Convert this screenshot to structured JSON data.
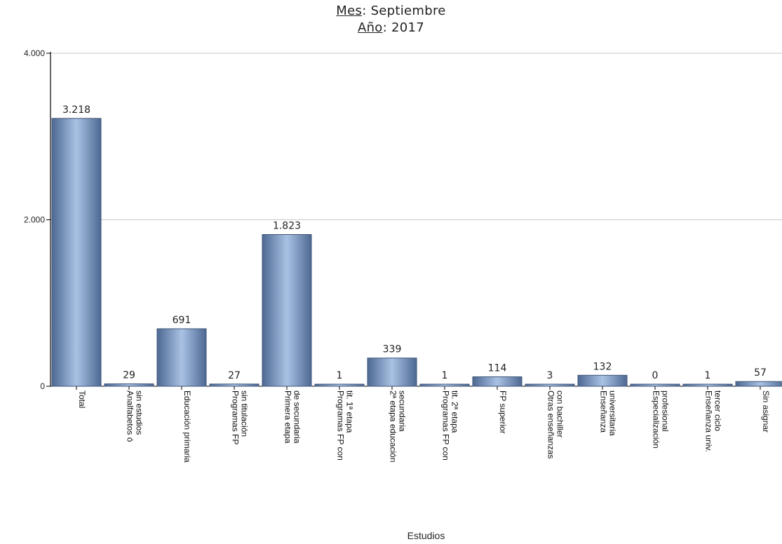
{
  "title": {
    "month_key": "Mes",
    "month_value": "Septiembre",
    "year_key": "Año",
    "year_value": "2017"
  },
  "chart_data": {
    "type": "bar",
    "xlabel": "Estudios",
    "ylabel": "",
    "ylim": [
      0,
      4000
    ],
    "yticks": [
      "0",
      "2.000",
      "4.000"
    ],
    "ytick_values": [
      0,
      2000,
      4000
    ],
    "grid": true,
    "bar_color": "#7f9bc2",
    "categories": [
      [
        "Total"
      ],
      [
        "Analfabetos ó",
        "sin estudios"
      ],
      [
        "Educación primaria"
      ],
      [
        "Programas FP",
        "sin titulación"
      ],
      [
        "Primera etapa",
        "de secundaria"
      ],
      [
        "Programas FP con",
        "tit. 1ª etapa"
      ],
      [
        "2ª etapa educación",
        "secundaria"
      ],
      [
        "Programas FP con",
        "tit. 2ª etapa"
      ],
      [
        "FP superior"
      ],
      [
        "Otras enseñanzas",
        "con bachiller"
      ],
      [
        "Enseñanza",
        "universitaria"
      ],
      [
        "Especialización",
        "profesional"
      ],
      [
        "Enseñanza univ.",
        "tercer ciclo"
      ],
      [
        "Sin asignar"
      ]
    ],
    "values": [
      3218,
      29,
      691,
      27,
      1823,
      1,
      339,
      1,
      114,
      3,
      132,
      0,
      1,
      57
    ],
    "value_labels": [
      "3.218",
      "29",
      "691",
      "27",
      "1.823",
      "1",
      "339",
      "1",
      "114",
      "3",
      "132",
      "0",
      "1",
      "57"
    ]
  }
}
